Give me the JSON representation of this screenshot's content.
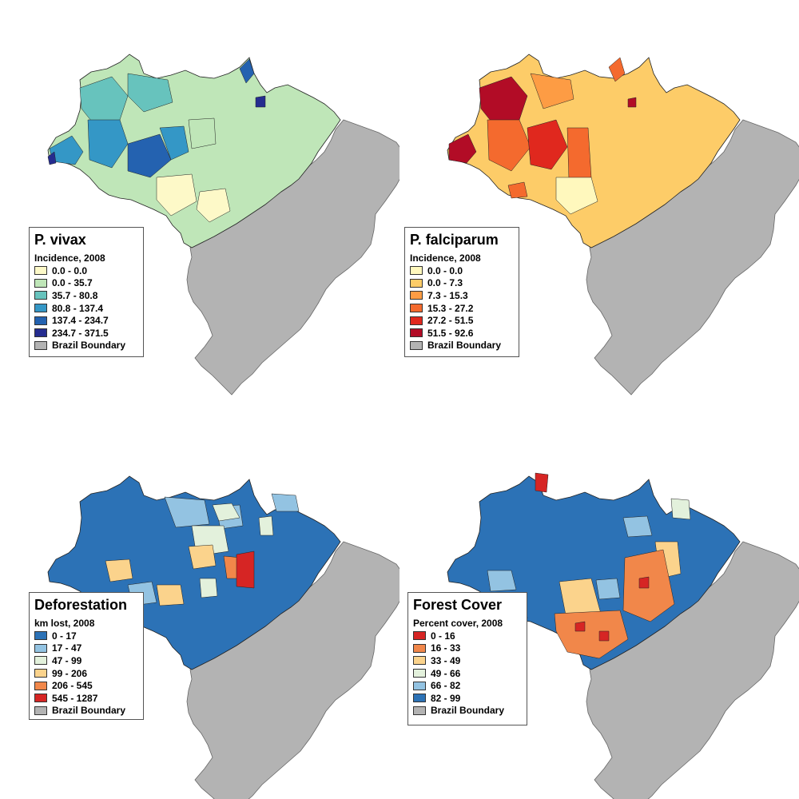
{
  "maps": [
    {
      "title": "P. vivax",
      "subtitle": "Incidence, 2008",
      "legend": [
        {
          "label": "0.0 - 0.0",
          "color": "#fdf9c8"
        },
        {
          "label": "0.0 - 35.7",
          "color": "#bfe6b8"
        },
        {
          "label": "35.7 - 80.8",
          "color": "#67c3bd"
        },
        {
          "label": "80.8 - 137.4",
          "color": "#3497c6"
        },
        {
          "label": "137.4 - 234.7",
          "color": "#2462b0"
        },
        {
          "label": "234.7 - 371.5",
          "color": "#252c8f"
        },
        {
          "label": "Brazil Boundary",
          "color": "#b3b3b3"
        }
      ]
    },
    {
      "title": "P. falciparum",
      "subtitle": "Incidence, 2008",
      "legend": [
        {
          "label": "0.0 - 0.0",
          "color": "#fff8bd"
        },
        {
          "label": "0.0 - 7.3",
          "color": "#fdcc68"
        },
        {
          "label": "7.3 - 15.3",
          "color": "#fd9c44"
        },
        {
          "label": "15.3 - 27.2",
          "color": "#f46a2e"
        },
        {
          "label": "27.2 - 51.5",
          "color": "#e0281e"
        },
        {
          "label": "51.5 - 92.6",
          "color": "#b20c26"
        },
        {
          "label": "Brazil Boundary",
          "color": "#b3b3b3"
        }
      ]
    },
    {
      "title": "Deforestation",
      "subtitle": "km lost, 2008",
      "legend": [
        {
          "label": "0 - 17",
          "color": "#2c72b6"
        },
        {
          "label": "17 - 47",
          "color": "#93c3e2"
        },
        {
          "label": "47 - 99",
          "color": "#e3f1dc"
        },
        {
          "label": "99 - 206",
          "color": "#fbd38c"
        },
        {
          "label": "206 - 545",
          "color": "#f1874a"
        },
        {
          "label": "545 - 1287",
          "color": "#d62524"
        },
        {
          "label": "Brazil Boundary",
          "color": "#b3b3b3"
        }
      ]
    },
    {
      "title": "Forest Cover",
      "subtitle": "Percent cover, 2008",
      "legend": [
        {
          "label": "0 - 16",
          "color": "#d62524"
        },
        {
          "label": "16 - 33",
          "color": "#f1874a"
        },
        {
          "label": "33 - 49",
          "color": "#fbd38c"
        },
        {
          "label": "49 - 66",
          "color": "#e3f1dc"
        },
        {
          "label": "66 - 82",
          "color": "#93c3e2"
        },
        {
          "label": "82 - 99",
          "color": "#2c72b6"
        },
        {
          "label": "Brazil Boundary",
          "color": "#b3b3b3"
        }
      ]
    }
  ]
}
